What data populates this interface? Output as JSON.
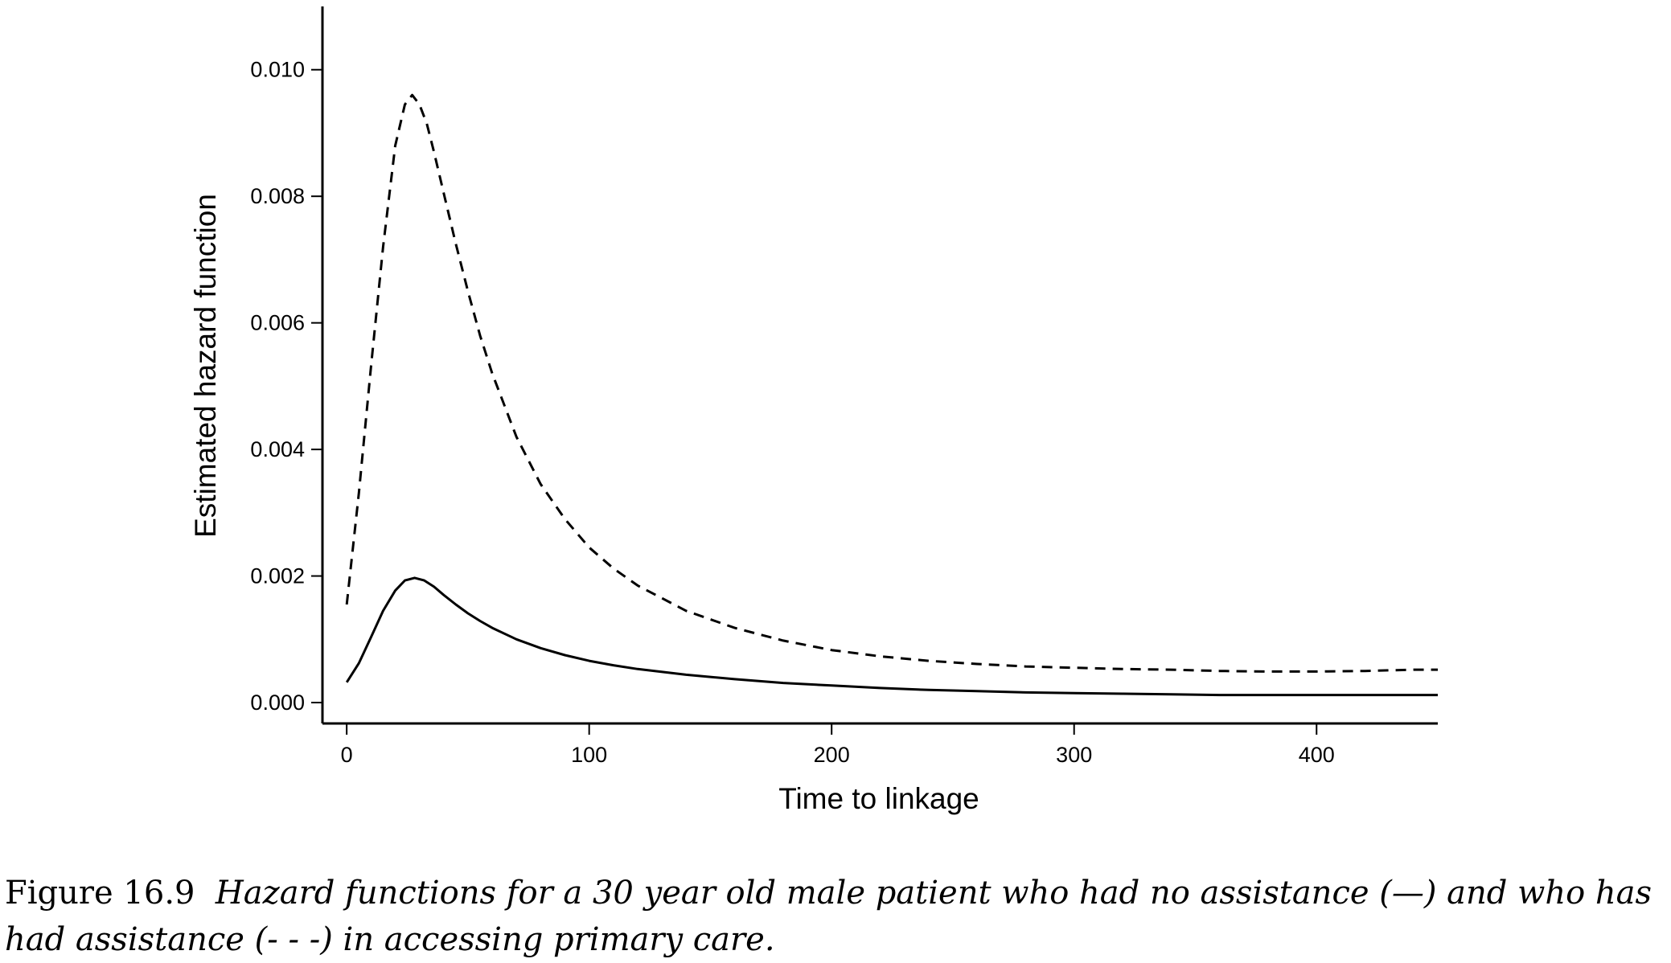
{
  "chart_data": {
    "type": "line",
    "xlabel": "Time to linkage",
    "ylabel": "Estimated hazard function",
    "xlim": [
      -10,
      450
    ],
    "ylim": [
      -0.00033,
      0.011
    ],
    "xticks": [
      0,
      100,
      200,
      300,
      400
    ],
    "yticks": [
      0.0,
      0.002,
      0.004,
      0.006,
      0.008,
      0.01
    ],
    "xtick_labels": [
      "0",
      "100",
      "200",
      "300",
      "400"
    ],
    "ytick_labels": [
      "0.000",
      "0.002",
      "0.004",
      "0.006",
      "0.008",
      "0.010"
    ],
    "grid": false,
    "series": [
      {
        "style": "solid",
        "x": [
          0,
          5,
          10,
          15,
          20,
          24,
          28,
          32,
          36,
          40,
          45,
          50,
          55,
          60,
          70,
          80,
          90,
          100,
          110,
          120,
          140,
          160,
          180,
          200,
          220,
          240,
          260,
          280,
          300,
          320,
          340,
          360,
          380,
          400,
          420,
          440,
          450
        ],
        "y": [
          0.00032,
          0.00062,
          0.00103,
          0.00145,
          0.00177,
          0.00193,
          0.00197,
          0.00193,
          0.00183,
          0.0017,
          0.00155,
          0.00141,
          0.00129,
          0.00118,
          0.001,
          0.00086,
          0.00075,
          0.00066,
          0.00059,
          0.00053,
          0.00044,
          0.00037,
          0.00031,
          0.00027,
          0.00023,
          0.0002,
          0.00018,
          0.00016,
          0.00015,
          0.00014,
          0.00013,
          0.00012,
          0.00012,
          0.00012,
          0.00012,
          0.00012,
          0.00012
        ]
      },
      {
        "style": "dashed",
        "x": [
          0,
          5,
          10,
          15,
          20,
          24,
          27,
          30,
          33,
          36,
          40,
          45,
          50,
          55,
          60,
          70,
          80,
          90,
          100,
          110,
          120,
          140,
          160,
          180,
          200,
          220,
          240,
          260,
          280,
          300,
          320,
          340,
          360,
          380,
          400,
          420,
          440,
          450
        ],
        "y": [
          0.00155,
          0.0033,
          0.0053,
          0.0072,
          0.0088,
          0.00945,
          0.0096,
          0.00945,
          0.00915,
          0.0087,
          0.00805,
          0.00725,
          0.0065,
          0.0058,
          0.0052,
          0.0042,
          0.00345,
          0.0029,
          0.00245,
          0.00212,
          0.00185,
          0.00145,
          0.00118,
          0.00098,
          0.00083,
          0.00073,
          0.00066,
          0.00061,
          0.00057,
          0.00055,
          0.00053,
          0.00052,
          0.0005,
          0.00049,
          0.00049,
          0.0005,
          0.00052,
          0.00052
        ]
      }
    ]
  },
  "caption": {
    "label": "Figure 16.9",
    "text": "Hazard functions for a 30 year old male patient who had no assistance (—) and who has had assistance (- - -) in accessing primary care."
  }
}
